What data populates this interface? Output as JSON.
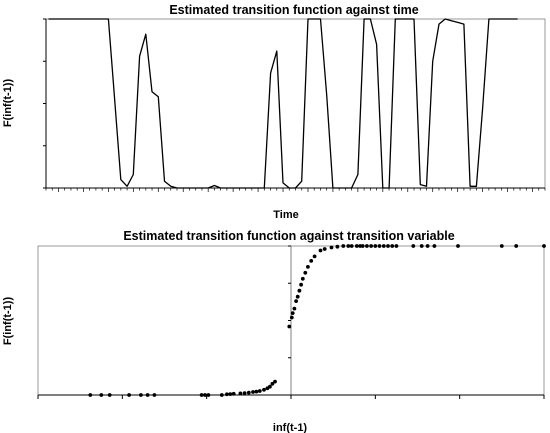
{
  "chart_data": [
    {
      "type": "line",
      "title": "Estimated transition function against time",
      "xlabel": "Time",
      "ylabel": "F(inf(t-1))",
      "ylim": [
        0,
        1
      ],
      "y_ticks": [
        "0.00",
        "0.25",
        "0.50",
        "0.75",
        "1.00"
      ],
      "x_ticks": [
        "1994",
        "1995",
        "1996",
        "1997",
        "1998",
        "1999",
        "2000",
        "2001",
        "2002",
        "2003",
        "2004",
        "2005",
        "2006",
        "2007",
        "2008",
        "2009",
        "2010",
        "2011",
        "2012"
      ],
      "grid": false,
      "series": [
        {
          "color": "#000000",
          "x": [
            1993.6,
            1994.0,
            1994.5,
            1995.0,
            1995.5,
            1996.0,
            1996.2,
            1996.5,
            1996.75,
            1997.0,
            1997.25,
            1997.5,
            1997.75,
            1998.0,
            1998.25,
            1998.5,
            1998.75,
            1999.0,
            1999.5,
            2000.0,
            2000.25,
            2000.5,
            2001.0,
            2001.5,
            2002.0,
            2002.25,
            2002.5,
            2002.75,
            2003.0,
            2003.25,
            2003.5,
            2003.75,
            2004.0,
            2004.25,
            2004.5,
            2004.75,
            2005.0,
            2005.25,
            2005.5,
            2005.75,
            2006.0,
            2006.25,
            2006.5,
            2006.75,
            2007.0,
            2007.25,
            2007.5,
            2007.75,
            2008.0,
            2008.25,
            2008.5,
            2008.75,
            2009.0,
            2009.25,
            2009.5,
            2009.75,
            2010.0,
            2010.25,
            2010.5,
            2010.75,
            2011.0,
            2011.25,
            2011.5,
            2011.75,
            2012.0,
            2012.25,
            2012.4
          ],
          "y": [
            1.0,
            1.0,
            1.0,
            1.0,
            1.0,
            1.0,
            0.62,
            0.05,
            0.01,
            0.08,
            0.78,
            0.91,
            0.57,
            0.54,
            0.04,
            0.01,
            0.0,
            0.0,
            0.0,
            0.0,
            0.015,
            0.0,
            0.0,
            0.0,
            0.0,
            0.0,
            0.68,
            0.81,
            0.03,
            0.0,
            0.0,
            0.04,
            1.0,
            1.0,
            1.0,
            0.55,
            0.0,
            0.0,
            0.0,
            0.0,
            0.08,
            1.0,
            1.0,
            0.85,
            0.0,
            0.0,
            1.0,
            1.0,
            1.0,
            1.0,
            0.02,
            0.01,
            0.75,
            0.97,
            1.0,
            0.99,
            0.98,
            0.97,
            0.01,
            0.01,
            0.47,
            1.0,
            1.0,
            1.0,
            1.0,
            1.0,
            1.0
          ]
        }
      ]
    },
    {
      "type": "scatter",
      "title": "Estimated transition function against transition variable",
      "xlabel": "inf(t-1)",
      "ylabel": "F(inf(t-1))",
      "xlim": [
        -3,
        3
      ],
      "ylim": [
        0,
        1
      ],
      "x_ticks": [
        "-3",
        "-2",
        "-1",
        "0",
        "1",
        "2",
        "3"
      ],
      "y_ticks": [
        "0.00",
        "0.25",
        "0.50",
        "0.75",
        "1.00"
      ],
      "grid": false,
      "series": [
        {
          "color": "#000000",
          "points": [
            [
              -2.38,
              0.0
            ],
            [
              -2.25,
              0.0
            ],
            [
              -2.15,
              0.0
            ],
            [
              -1.92,
              0.0
            ],
            [
              -1.78,
              0.0
            ],
            [
              -1.7,
              0.0
            ],
            [
              -1.62,
              0.0
            ],
            [
              -1.06,
              0.0
            ],
            [
              -1.02,
              0.0
            ],
            [
              -0.98,
              0.0
            ],
            [
              -0.82,
              0.0
            ],
            [
              -0.76,
              0.005
            ],
            [
              -0.72,
              0.006
            ],
            [
              -0.68,
              0.008
            ],
            [
              -0.6,
              0.011
            ],
            [
              -0.55,
              0.013
            ],
            [
              -0.5,
              0.016
            ],
            [
              -0.45,
              0.02
            ],
            [
              -0.41,
              0.023
            ],
            [
              -0.37,
              0.027
            ],
            [
              -0.32,
              0.035
            ],
            [
              -0.28,
              0.045
            ],
            [
              -0.25,
              0.056
            ],
            [
              -0.22,
              0.075
            ],
            [
              -0.19,
              0.09
            ],
            [
              -0.02,
              0.46
            ],
            [
              0.01,
              0.52
            ],
            [
              0.02,
              0.55
            ],
            [
              0.04,
              0.58
            ],
            [
              0.06,
              0.63
            ],
            [
              0.08,
              0.66
            ],
            [
              0.1,
              0.7
            ],
            [
              0.12,
              0.74
            ],
            [
              0.14,
              0.78
            ],
            [
              0.17,
              0.82
            ],
            [
              0.2,
              0.86
            ],
            [
              0.24,
              0.9
            ],
            [
              0.28,
              0.93
            ],
            [
              0.35,
              0.97
            ],
            [
              0.4,
              0.98
            ],
            [
              0.48,
              0.99
            ],
            [
              0.55,
              0.995
            ],
            [
              0.62,
              1.0
            ],
            [
              0.68,
              1.0
            ],
            [
              0.72,
              1.0
            ],
            [
              0.78,
              1.0
            ],
            [
              0.82,
              1.0
            ],
            [
              0.85,
              1.0
            ],
            [
              0.9,
              1.0
            ],
            [
              0.95,
              1.0
            ],
            [
              1.0,
              1.0
            ],
            [
              1.05,
              1.0
            ],
            [
              1.1,
              1.0
            ],
            [
              1.15,
              1.0
            ],
            [
              1.2,
              1.0
            ],
            [
              1.25,
              1.0
            ],
            [
              1.45,
              1.0
            ],
            [
              1.55,
              1.0
            ],
            [
              1.62,
              1.0
            ],
            [
              1.7,
              1.0
            ],
            [
              1.98,
              1.0
            ],
            [
              2.5,
              1.0
            ],
            [
              2.67,
              1.0
            ],
            [
              3.0,
              1.0
            ]
          ]
        }
      ]
    }
  ]
}
